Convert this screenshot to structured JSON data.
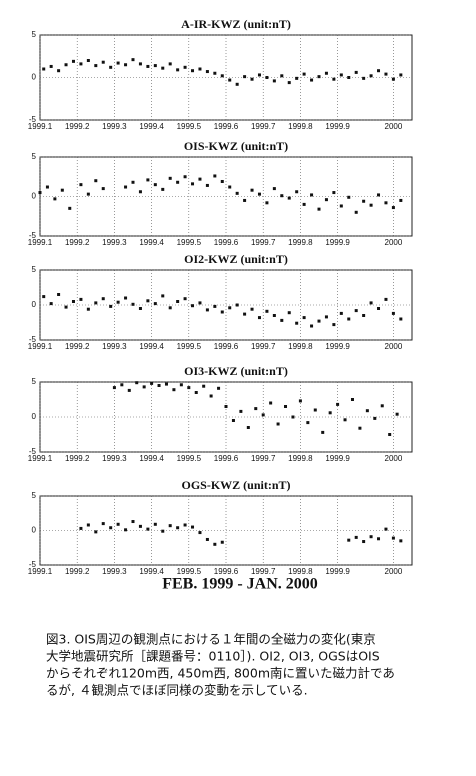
{
  "chart_data": [
    {
      "type": "scatter",
      "title": "A-IR-KWZ (unit:nT)",
      "color": "#111111",
      "grid": true,
      "x": [
        1.1,
        1.3,
        1.5,
        1.7,
        1.9,
        2.1,
        2.3,
        2.5,
        2.7,
        2.9,
        3.1,
        3.3,
        3.5,
        3.7,
        3.9,
        4.1,
        4.3,
        4.5,
        4.7,
        4.9,
        5.1,
        5.3,
        5.5,
        5.7,
        5.9,
        6.1,
        6.3,
        6.5,
        6.7,
        6.9,
        7.1,
        7.3,
        7.5,
        7.7,
        7.9,
        8.1,
        8.3,
        8.5,
        8.7,
        8.9,
        9.1,
        9.3,
        9.5,
        9.7,
        9.9,
        10.1,
        10.3,
        10.5,
        10.7
      ],
      "values": [
        1.0,
        1.3,
        0.8,
        1.5,
        1.9,
        1.6,
        2.0,
        1.4,
        1.8,
        1.2,
        1.7,
        1.5,
        2.1,
        1.6,
        1.3,
        1.4,
        1.1,
        1.6,
        0.9,
        1.2,
        0.8,
        1.0,
        0.7,
        0.5,
        0.2,
        -0.3,
        -0.8,
        0.1,
        -0.2,
        0.3,
        0.0,
        -0.4,
        0.2,
        -0.6,
        -0.1,
        0.4,
        -0.3,
        0.1,
        0.5,
        -0.2,
        0.3,
        0.0,
        0.6,
        -0.1,
        0.2,
        0.8,
        0.4,
        -0.2,
        0.3
      ],
      "xlim": [
        1,
        11
      ],
      "ylim": [
        -5,
        5
      ],
      "yticks": [
        -5,
        0,
        5
      ],
      "xticks": [
        {
          "value": 1,
          "label": "1999.1"
        },
        {
          "value": 2,
          "label": "1999.2"
        },
        {
          "value": 3,
          "label": "1999.3"
        },
        {
          "value": 4,
          "label": "1999.4"
        },
        {
          "value": 5,
          "label": "1999.5"
        },
        {
          "value": 6,
          "label": "1999.6"
        },
        {
          "value": 7,
          "label": "1999.7"
        },
        {
          "value": 8,
          "label": "1999.8"
        },
        {
          "value": 9,
          "label": "1999.9"
        },
        {
          "value": 10.5,
          "label": "2000"
        }
      ]
    },
    {
      "type": "scatter",
      "title": "OIS-KWZ (unit:nT)",
      "color": "#111111",
      "grid": true,
      "x": [
        1.0,
        1.2,
        1.4,
        1.6,
        1.8,
        2.1,
        2.3,
        2.5,
        2.7,
        3.3,
        3.5,
        3.7,
        3.9,
        4.1,
        4.3,
        4.5,
        4.7,
        4.9,
        5.1,
        5.3,
        5.5,
        5.7,
        5.9,
        6.1,
        6.3,
        6.5,
        6.7,
        6.9,
        7.1,
        7.3,
        7.5,
        7.7,
        7.9,
        8.1,
        8.3,
        8.5,
        8.7,
        8.9,
        9.1,
        9.3,
        9.5,
        9.7,
        9.9,
        10.1,
        10.3,
        10.5,
        10.7
      ],
      "values": [
        0.5,
        1.2,
        -0.3,
        0.8,
        -1.5,
        1.5,
        0.3,
        2.0,
        1.0,
        1.2,
        1.8,
        0.6,
        2.1,
        1.5,
        0.9,
        2.3,
        1.8,
        2.5,
        1.6,
        2.2,
        1.4,
        2.6,
        1.9,
        1.2,
        0.4,
        -0.5,
        0.8,
        0.3,
        -0.8,
        1.0,
        0.1,
        -0.2,
        0.6,
        -1.0,
        0.2,
        -1.6,
        -0.4,
        0.5,
        -1.2,
        -0.1,
        -2.0,
        -0.6,
        -1.1,
        0.2,
        -0.8,
        -1.4,
        -0.5
      ],
      "xlim": [
        1,
        11
      ],
      "ylim": [
        -5,
        5
      ],
      "yticks": [
        -5,
        0,
        5
      ],
      "xticks": [
        {
          "value": 1,
          "label": "1999.1"
        },
        {
          "value": 2,
          "label": "1999.2"
        },
        {
          "value": 3,
          "label": "1999.3"
        },
        {
          "value": 4,
          "label": "1999.4"
        },
        {
          "value": 5,
          "label": "1999.5"
        },
        {
          "value": 6,
          "label": "1999.6"
        },
        {
          "value": 7,
          "label": "1999.7"
        },
        {
          "value": 8,
          "label": "1999.8"
        },
        {
          "value": 9,
          "label": "1999.9"
        },
        {
          "value": 10.5,
          "label": "2000"
        }
      ]
    },
    {
      "type": "scatter",
      "title": "OI2-KWZ (unit:nT)",
      "color": "#111111",
      "grid": true,
      "x": [
        1.1,
        1.3,
        1.5,
        1.7,
        1.9,
        2.1,
        2.3,
        2.5,
        2.7,
        2.9,
        3.1,
        3.3,
        3.5,
        3.7,
        3.9,
        4.1,
        4.3,
        4.5,
        4.7,
        4.9,
        5.1,
        5.3,
        5.5,
        5.7,
        5.9,
        6.1,
        6.3,
        6.5,
        6.7,
        6.9,
        7.1,
        7.3,
        7.5,
        7.7,
        7.9,
        8.1,
        8.3,
        8.5,
        8.7,
        8.9,
        9.1,
        9.3,
        9.5,
        9.7,
        9.9,
        10.1,
        10.3,
        10.5,
        10.7
      ],
      "values": [
        1.2,
        0.2,
        1.5,
        -0.3,
        0.5,
        0.8,
        -0.6,
        0.3,
        0.9,
        -0.2,
        0.4,
        1.0,
        0.1,
        -0.5,
        0.6,
        0.2,
        1.3,
        -0.4,
        0.5,
        0.9,
        -0.1,
        0.3,
        -0.7,
        -0.2,
        -1.0,
        -0.4,
        0.0,
        -1.3,
        -0.6,
        -1.8,
        -0.9,
        -1.5,
        -2.2,
        -1.1,
        -2.6,
        -1.8,
        -3.0,
        -2.3,
        -1.7,
        -2.8,
        -1.2,
        -2.0,
        -0.8,
        -1.5,
        0.3,
        -0.5,
        0.8,
        -1.2,
        -2.0
      ],
      "xlim": [
        1,
        11
      ],
      "ylim": [
        -5,
        5
      ],
      "yticks": [
        -5,
        0,
        5
      ],
      "xticks": [
        {
          "value": 1,
          "label": "1999.1"
        },
        {
          "value": 2,
          "label": "1999.2"
        },
        {
          "value": 3,
          "label": "1999.3"
        },
        {
          "value": 4,
          "label": "1999.4"
        },
        {
          "value": 5,
          "label": "1999.5"
        },
        {
          "value": 6,
          "label": "1999.6"
        },
        {
          "value": 7,
          "label": "1999.7"
        },
        {
          "value": 8,
          "label": "1999.8"
        },
        {
          "value": 9,
          "label": "1999.9"
        },
        {
          "value": 10.5,
          "label": "2000"
        }
      ]
    },
    {
      "type": "scatter",
      "title": "OI3-KWZ (unit:nT)",
      "color": "#111111",
      "grid": true,
      "x": [
        3.0,
        3.2,
        3.4,
        3.6,
        3.8,
        4.0,
        4.2,
        4.4,
        4.6,
        4.8,
        5.0,
        5.2,
        5.4,
        5.6,
        5.8,
        6.0,
        6.2,
        6.4,
        6.6,
        6.8,
        7.0,
        7.2,
        7.4,
        7.6,
        7.8,
        8.0,
        8.2,
        8.4,
        8.6,
        8.8,
        9.0,
        9.2,
        9.4,
        9.6,
        9.8,
        10.0,
        10.2,
        10.4,
        10.6
      ],
      "values": [
        4.2,
        4.6,
        3.8,
        4.9,
        4.3,
        4.8,
        4.5,
        4.7,
        3.9,
        4.6,
        4.2,
        3.5,
        4.4,
        3.0,
        4.1,
        1.5,
        -0.5,
        0.8,
        -1.5,
        1.2,
        0.3,
        2.0,
        -1.0,
        1.5,
        0.0,
        2.3,
        -0.8,
        1.0,
        -2.2,
        0.6,
        1.8,
        -0.4,
        2.5,
        -1.6,
        0.9,
        -0.2,
        1.6,
        -2.5,
        0.4
      ],
      "xlim": [
        1,
        11
      ],
      "ylim": [
        -5,
        5
      ],
      "yticks": [
        -5,
        0,
        5
      ],
      "xticks": [
        {
          "value": 1,
          "label": "1999.1"
        },
        {
          "value": 2,
          "label": "1999.2"
        },
        {
          "value": 3,
          "label": "1999.3"
        },
        {
          "value": 4,
          "label": "1999.4"
        },
        {
          "value": 5,
          "label": "1999.5"
        },
        {
          "value": 6,
          "label": "1999.6"
        },
        {
          "value": 7,
          "label": "1999.7"
        },
        {
          "value": 8,
          "label": "1999.8"
        },
        {
          "value": 9,
          "label": "1999.9"
        },
        {
          "value": 10.5,
          "label": "2000"
        }
      ]
    },
    {
      "type": "scatter",
      "title": "OGS-KWZ (unit:nT)",
      "color": "#111111",
      "grid": true,
      "x": [
        2.1,
        2.3,
        2.5,
        2.7,
        2.9,
        3.1,
        3.3,
        3.5,
        3.7,
        3.9,
        4.1,
        4.3,
        4.5,
        4.7,
        4.9,
        5.1,
        5.3,
        5.5,
        5.7,
        5.9,
        9.3,
        9.5,
        9.7,
        9.9,
        10.1,
        10.3,
        10.5,
        10.7
      ],
      "values": [
        0.3,
        0.8,
        -0.2,
        1.0,
        0.4,
        0.9,
        0.1,
        1.3,
        0.6,
        0.2,
        0.9,
        -0.1,
        0.7,
        0.4,
        0.8,
        0.5,
        -0.3,
        -1.3,
        -2.0,
        -1.7,
        -1.4,
        -1.0,
        -1.6,
        -0.9,
        -1.2,
        0.2,
        -1.1,
        -1.5
      ],
      "xlim": [
        1,
        11
      ],
      "ylim": [
        -5,
        5
      ],
      "yticks": [
        -5,
        0,
        5
      ],
      "xticks": [
        {
          "value": 1,
          "label": "1999.1"
        },
        {
          "value": 2,
          "label": "1999.2"
        },
        {
          "value": 3,
          "label": "1999.3"
        },
        {
          "value": 4,
          "label": "1999.4"
        },
        {
          "value": 5,
          "label": "1999.5"
        },
        {
          "value": 6,
          "label": "1999.6"
        },
        {
          "value": 7,
          "label": "1999.7"
        },
        {
          "value": 8,
          "label": "1999.8"
        },
        {
          "value": 9,
          "label": "1999.9"
        },
        {
          "value": 10.5,
          "label": "2000"
        }
      ]
    }
  ],
  "period_label": "FEB. 1999 - JAN. 2000",
  "caption": [
    "図3. OIS周辺の観測点における１年間の全磁力の変化(東京",
    "大学地震研究所［課題番号：0110］). OI2, OI3, OGSはOIS",
    "からそれぞれ120m西, 450m西, 800m南に置いた磁力計であ",
    "るが, ４観測点でほぼ同様の変動を示している."
  ]
}
